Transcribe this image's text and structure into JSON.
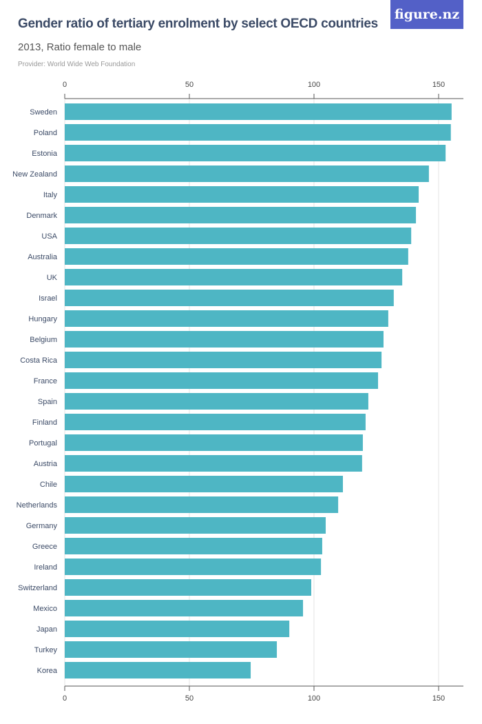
{
  "header": {
    "title": "Gender ratio of tertiary enrolment by select OECD countries",
    "subtitle": "2013, Ratio female to male",
    "provider": "Provider: World Wide Web Foundation",
    "logo": "figure.nz"
  },
  "colors": {
    "bar": "#4eb6c4",
    "logo_bg": "#5360c7",
    "title": "#3b4a66"
  },
  "chart_data": {
    "type": "bar",
    "orientation": "horizontal",
    "title": "Gender ratio of tertiary enrolment by select OECD countries",
    "subtitle": "2013, Ratio female to male",
    "xlabel": "",
    "ylabel": "",
    "xlim": [
      0,
      160
    ],
    "xticks": [
      0,
      50,
      100,
      150
    ],
    "grid": true,
    "categories": [
      "Sweden",
      "Poland",
      "Estonia",
      "New Zealand",
      "Italy",
      "Denmark",
      "USA",
      "Australia",
      "UK",
      "Israel",
      "Hungary",
      "Belgium",
      "Costa Rica",
      "France",
      "Spain",
      "Finland",
      "Portugal",
      "Austria",
      "Chile",
      "Netherlands",
      "Germany",
      "Greece",
      "Ireland",
      "Switzerland",
      "Mexico",
      "Japan",
      "Turkey",
      "Korea"
    ],
    "values": [
      155.2,
      154.9,
      152.8,
      146.1,
      142.0,
      140.9,
      139.0,
      137.8,
      135.4,
      132.0,
      129.8,
      127.9,
      127.1,
      125.7,
      121.8,
      120.7,
      119.6,
      119.3,
      111.6,
      109.7,
      104.7,
      103.3,
      102.8,
      98.9,
      95.6,
      90.1,
      85.1,
      74.6
    ]
  }
}
